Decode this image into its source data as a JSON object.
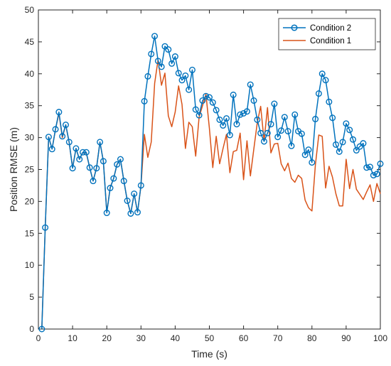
{
  "chart_data": {
    "type": "line",
    "xlabel": "Time (s)",
    "ylabel": "Position RMSE (m)",
    "xlim": [
      0,
      100
    ],
    "ylim": [
      0,
      50
    ],
    "xticks": [
      0,
      10,
      20,
      30,
      40,
      50,
      60,
      70,
      80,
      90,
      100
    ],
    "yticks": [
      0,
      5,
      10,
      15,
      20,
      25,
      30,
      35,
      40,
      45,
      50
    ],
    "grid": false,
    "legend_position": "top-right",
    "series": [
      {
        "name": "Condition 2",
        "color": "#0072BD",
        "marker": "circle",
        "x": [
          1,
          2,
          3,
          4,
          5,
          6,
          7,
          8,
          9,
          10,
          11,
          12,
          13,
          14,
          15,
          16,
          17,
          18,
          19,
          20,
          21,
          22,
          23,
          24,
          25,
          26,
          27,
          28,
          29,
          30,
          31,
          32,
          33,
          34,
          35,
          36,
          37,
          38,
          39,
          40,
          41,
          42,
          43,
          44,
          45,
          46,
          47,
          48,
          49,
          50,
          51,
          52,
          53,
          54,
          55,
          56,
          57,
          58,
          59,
          60,
          61,
          62,
          63,
          64,
          65,
          66,
          67,
          68,
          69,
          70,
          71,
          72,
          73,
          74,
          75,
          76,
          77,
          78,
          79,
          80,
          81,
          82,
          83,
          84,
          85,
          86,
          87,
          88,
          89,
          90,
          91,
          92,
          93,
          94,
          95,
          96,
          97,
          98,
          99,
          100
        ],
        "values": [
          0,
          15.9,
          30.1,
          28.2,
          31.3,
          34.0,
          30.2,
          32.0,
          29.3,
          25.2,
          28.3,
          26.6,
          27.7,
          27.7,
          25.3,
          23.2,
          25.2,
          29.3,
          26.3,
          18.2,
          22.1,
          23.6,
          25.8,
          26.6,
          23.2,
          20.1,
          18.1,
          21.2,
          18.3,
          22.5,
          35.7,
          39.6,
          43.1,
          45.9,
          42.0,
          41.1,
          44.3,
          43.8,
          41.6,
          42.7,
          40.1,
          39.0,
          39.7,
          37.5,
          40.6,
          34.4,
          33.5,
          35.8,
          36.5,
          36.3,
          35.5,
          34.3,
          32.8,
          31.9,
          33.0,
          30.4,
          36.7,
          32.1,
          33.6,
          33.8,
          34.1,
          38.3,
          35.8,
          32.8,
          30.7,
          29.4,
          30.7,
          32.1,
          35.3,
          30.1,
          31.1,
          33.2,
          31.0,
          28.7,
          33.6,
          31.0,
          30.6,
          27.3,
          28.1,
          26.1,
          32.9,
          36.9,
          40.0,
          39.0,
          35.6,
          33.1,
          28.9,
          27.8,
          29.3,
          32.2,
          31.2,
          29.7,
          28.0,
          28.6,
          29.1,
          25.3,
          25.4,
          24.1,
          24.3,
          25.9
        ]
      },
      {
        "name": "Condition 1",
        "color": "#D95319",
        "marker": "none",
        "x": [
          1,
          2,
          3,
          4,
          5,
          6,
          7,
          8,
          9,
          10,
          11,
          12,
          13,
          14,
          15,
          16,
          17,
          18,
          19,
          20,
          21,
          22,
          23,
          24,
          25,
          26,
          27,
          28,
          29,
          30,
          31,
          32,
          33,
          34,
          35,
          36,
          37,
          38,
          39,
          40,
          41,
          42,
          43,
          44,
          45,
          46,
          47,
          48,
          49,
          50,
          51,
          52,
          53,
          54,
          55,
          56,
          57,
          58,
          59,
          60,
          61,
          62,
          63,
          64,
          65,
          66,
          67,
          68,
          69,
          70,
          71,
          72,
          73,
          74,
          75,
          76,
          77,
          78,
          79,
          80,
          81,
          82,
          83,
          84,
          85,
          86,
          87,
          88,
          89,
          90,
          91,
          92,
          93,
          94,
          95,
          96,
          97,
          98,
          99,
          100
        ],
        "values": [
          0,
          15.9,
          30.1,
          28.2,
          31.3,
          33.8,
          30.0,
          32.0,
          29.2,
          25.3,
          28.3,
          26.6,
          27.7,
          27.6,
          25.3,
          23.2,
          25.3,
          29.3,
          26.3,
          18.3,
          22.2,
          23.6,
          25.8,
          26.6,
          23.2,
          20.1,
          18.1,
          21.2,
          18.3,
          22.4,
          30.5,
          26.9,
          29.3,
          38.5,
          42.2,
          38.2,
          40.1,
          33.4,
          31.7,
          34.0,
          38.1,
          35.2,
          28.3,
          32.4,
          31.7,
          27.1,
          33.2,
          35.0,
          36.8,
          31.5,
          25.3,
          30.2,
          25.9,
          28.3,
          30.5,
          24.5,
          27.8,
          28.0,
          30.7,
          23.4,
          29.5,
          24.0,
          28.2,
          32.3,
          34.9,
          29.5,
          34.7,
          27.6,
          29.0,
          29.1,
          25.9,
          24.8,
          26.0,
          23.6,
          23.0,
          24.1,
          23.6,
          20.2,
          19.0,
          18.5,
          25.7,
          30.4,
          30.2,
          22.1,
          25.5,
          23.8,
          21.2,
          19.3,
          19.3,
          26.6,
          22.0,
          25.0,
          21.9,
          21.1,
          20.3,
          21.5,
          22.6,
          20.0,
          22.8,
          21.2
        ]
      }
    ]
  }
}
